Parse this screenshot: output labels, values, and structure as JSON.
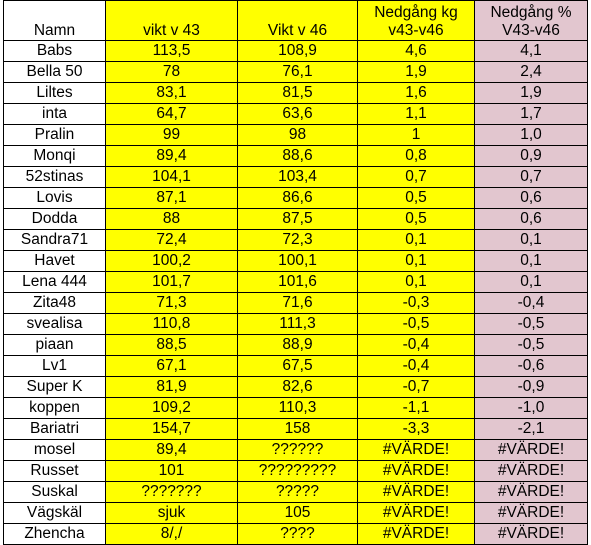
{
  "colors": {
    "yellow": "#ffff00",
    "pink": "#e2c6cf",
    "white": "#ffffff"
  },
  "headers": {
    "namn": "Namn",
    "vikt43": "vikt v 43",
    "vikt46": "Vikt v 46",
    "nedgang_kg": [
      "Nedgång kg",
      "v43-v46"
    ],
    "nedgang_pct": [
      "Nedgång %",
      "V43-v46"
    ]
  },
  "rows": [
    {
      "namn": "Babs",
      "v43": "113,5",
      "v46": "108,9",
      "kg": "4,6",
      "pct": "4,1"
    },
    {
      "namn": "Bella 50",
      "v43": "78",
      "v46": "76,1",
      "kg": "1,9",
      "pct": "2,4"
    },
    {
      "namn": "Liltes",
      "v43": "83,1",
      "v46": "81,5",
      "kg": "1,6",
      "pct": "1,9"
    },
    {
      "namn": "inta",
      "v43": "64,7",
      "v46": "63,6",
      "kg": "1,1",
      "pct": "1,7"
    },
    {
      "namn": "Pralin",
      "v43": "99",
      "v46": "98",
      "kg": "1",
      "pct": "1,0"
    },
    {
      "namn": "Monqi",
      "v43": "89,4",
      "v46": "88,6",
      "kg": "0,8",
      "pct": "0,9"
    },
    {
      "namn": "52stinas",
      "v43": "104,1",
      "v46": "103,4",
      "kg": "0,7",
      "pct": "0,7"
    },
    {
      "namn": "Lovis",
      "v43": "87,1",
      "v46": "86,6",
      "kg": "0,5",
      "pct": "0,6"
    },
    {
      "namn": "Dodda",
      "v43": "88",
      "v46": "87,5",
      "kg": "0,5",
      "pct": "0,6"
    },
    {
      "namn": "Sandra71",
      "v43": "72,4",
      "v46": "72,3",
      "kg": "0,1",
      "pct": "0,1"
    },
    {
      "namn": "Havet",
      "v43": "100,2",
      "v46": "100,1",
      "kg": "0,1",
      "pct": "0,1"
    },
    {
      "namn": "Lena 444",
      "v43": "101,7",
      "v46": "101,6",
      "kg": "0,1",
      "pct": "0,1"
    },
    {
      "namn": "Zita48",
      "v43": "71,3",
      "v46": "71,6",
      "kg": "-0,3",
      "pct": "-0,4"
    },
    {
      "namn": "svealisa",
      "v43": "110,8",
      "v46": "111,3",
      "kg": "-0,5",
      "pct": "-0,5"
    },
    {
      "namn": "piaan",
      "v43": "88,5",
      "v46": "88,9",
      "kg": "-0,4",
      "pct": "-0,5"
    },
    {
      "namn": "Lv1",
      "v43": "67,1",
      "v46": "67,5",
      "kg": "-0,4",
      "pct": "-0,6"
    },
    {
      "namn": "Super K",
      "v43": "81,9",
      "v46": "82,6",
      "kg": "-0,7",
      "pct": "-0,9"
    },
    {
      "namn": "koppen",
      "v43": "109,2",
      "v46": "110,3",
      "kg": "-1,1",
      "pct": "-1,0"
    },
    {
      "namn": "Bariatri",
      "v43": "154,7",
      "v46": "158",
      "kg": "-3,3",
      "pct": "-2,1"
    },
    {
      "namn": "mosel",
      "v43": "89,4",
      "v46": "??????",
      "kg": "#VÄRDE!",
      "pct": "#VÄRDE!"
    },
    {
      "namn": "Russet",
      "v43": "101",
      "v46": "?????????",
      "kg": "#VÄRDE!",
      "pct": "#VÄRDE!"
    },
    {
      "namn": "Suskal",
      "v43": "???????",
      "v46": "?????",
      "kg": "#VÄRDE!",
      "pct": "#VÄRDE!"
    },
    {
      "namn": "Vägskäl",
      "v43": "sjuk",
      "v46": "105",
      "kg": "#VÄRDE!",
      "pct": "#VÄRDE!"
    },
    {
      "namn": "Zhencha",
      "v43": "8/,/",
      "v46": "????",
      "kg": "#VÄRDE!",
      "pct": "#VÄRDE!"
    }
  ]
}
